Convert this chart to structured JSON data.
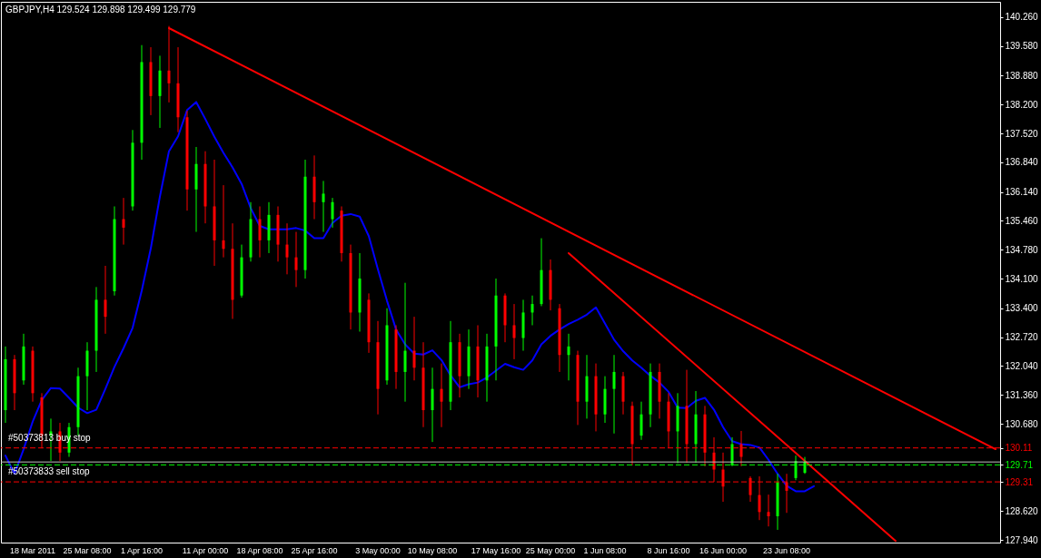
{
  "chart_data": {
    "type": "candlestick",
    "title": "GBPJPY,H4  129.524 129.898 129.499 129.779",
    "categories": [
      null,
      null,
      null,
      "18 Mar 2011",
      null,
      null,
      null,
      null,
      null,
      "25 Mar 08:00",
      null,
      null,
      null,
      null,
      null,
      "1 Apr 16:00",
      null,
      null,
      null,
      null,
      null,
      null,
      "11 Apr 00:00",
      null,
      null,
      null,
      null,
      null,
      "18 Apr 08:00",
      null,
      null,
      null,
      null,
      null,
      "25 Apr 16:00",
      null,
      null,
      null,
      null,
      null,
      null,
      "3 May 00:00",
      null,
      null,
      null,
      null,
      null,
      "10 May 08:00",
      null,
      null,
      null,
      null,
      null,
      null,
      "17 May 16:00",
      null,
      null,
      null,
      null,
      null,
      "25 May 00:00",
      null,
      null,
      null,
      null,
      null,
      "1 Jun 08:00",
      null,
      null,
      null,
      null,
      null,
      null,
      "8 Jun 16:00",
      null,
      null,
      null,
      null,
      null,
      "16 Jun 00:00",
      null,
      null,
      null,
      null,
      null,
      null,
      "23 Jun 08:00",
      null,
      null,
      null,
      null,
      null,
      null,
      null,
      null,
      null,
      null,
      null,
      null,
      null,
      null,
      null,
      null,
      null,
      null,
      null,
      null,
      null,
      null,
      null
    ],
    "ohlc": [
      [
        131.0,
        132.5,
        130.7,
        132.2
      ],
      [
        132.2,
        132.3,
        131.0,
        131.4
      ],
      [
        131.7,
        132.8,
        131.6,
        132.5
      ],
      [
        132.4,
        132.5,
        131.2,
        131.4
      ],
      [
        131.3,
        131.4,
        130.1,
        130.4
      ],
      [
        130.4,
        130.8,
        129.8,
        130.5
      ],
      [
        130.5,
        130.7,
        129.8,
        130.0
      ],
      [
        130.0,
        130.7,
        129.9,
        130.6
      ],
      [
        130.6,
        132.0,
        130.4,
        131.8
      ],
      [
        131.8,
        132.6,
        131.0,
        132.4
      ],
      [
        132.4,
        133.9,
        131.9,
        133.6
      ],
      [
        133.6,
        134.4,
        132.8,
        133.2
      ],
      [
        133.8,
        135.8,
        133.7,
        135.5
      ],
      [
        135.5,
        136.0,
        134.9,
        135.3
      ],
      [
        135.8,
        137.6,
        135.7,
        137.3
      ],
      [
        137.3,
        139.6,
        136.9,
        139.2
      ],
      [
        139.2,
        139.55,
        137.95,
        138.4
      ],
      [
        138.4,
        139.35,
        137.65,
        139.0
      ],
      [
        139.0,
        140.05,
        138.25,
        138.7
      ],
      [
        138.7,
        139.55,
        137.55,
        137.9
      ],
      [
        137.9,
        138.05,
        135.7,
        136.2
      ],
      [
        136.2,
        137.2,
        135.2,
        136.8
      ],
      [
        136.8,
        137.1,
        135.4,
        135.8
      ],
      [
        135.8,
        136.9,
        134.4,
        135.0
      ],
      [
        135.0,
        136.3,
        134.6,
        134.8
      ],
      [
        134.8,
        135.4,
        133.15,
        133.6
      ],
      [
        133.7,
        134.9,
        133.65,
        134.6
      ],
      [
        134.6,
        135.9,
        134.5,
        135.5
      ],
      [
        135.5,
        135.8,
        134.6,
        135.0
      ],
      [
        135.0,
        135.9,
        134.7,
        135.6
      ],
      [
        135.6,
        135.8,
        134.5,
        134.9
      ],
      [
        134.9,
        135.4,
        134.2,
        134.6
      ],
      [
        134.6,
        135.2,
        133.9,
        134.3
      ],
      [
        134.3,
        136.9,
        134.1,
        136.5
      ],
      [
        136.5,
        137.0,
        135.5,
        135.9
      ],
      [
        135.9,
        136.4,
        135.2,
        136.1
      ],
      [
        135.5,
        136.0,
        135.3,
        135.9
      ],
      [
        135.7,
        135.8,
        134.5,
        134.7
      ],
      [
        134.7,
        134.9,
        132.9,
        133.3
      ],
      [
        133.3,
        134.7,
        132.85,
        134.1
      ],
      [
        133.6,
        133.75,
        132.35,
        132.6
      ],
      [
        132.6,
        133.1,
        130.9,
        131.5
      ],
      [
        131.7,
        133.4,
        131.6,
        133.0
      ],
      [
        132.9,
        133.0,
        131.5,
        131.9
      ],
      [
        131.9,
        134.0,
        131.2,
        132.4
      ],
      [
        132.4,
        133.2,
        131.7,
        132.0
      ],
      [
        132.0,
        132.6,
        130.6,
        131.0
      ],
      [
        131.0,
        132.0,
        130.25,
        131.5
      ],
      [
        131.5,
        132.1,
        130.6,
        131.2
      ],
      [
        131.2,
        133.1,
        131.0,
        132.6
      ],
      [
        132.6,
        132.8,
        131.3,
        131.8
      ],
      [
        131.8,
        132.9,
        131.5,
        132.5
      ],
      [
        132.5,
        133.0,
        131.3,
        131.7
      ],
      [
        131.7,
        132.8,
        131.2,
        132.5
      ],
      [
        132.5,
        134.1,
        131.7,
        133.7
      ],
      [
        133.7,
        133.75,
        132.6,
        133.0
      ],
      [
        133.0,
        133.5,
        132.2,
        132.7
      ],
      [
        132.7,
        133.6,
        132.4,
        133.3
      ],
      [
        133.3,
        133.7,
        133.0,
        133.5
      ],
      [
        133.5,
        135.05,
        133.45,
        134.3
      ],
      [
        134.3,
        134.55,
        133.35,
        133.6
      ],
      [
        133.4,
        133.5,
        131.9,
        132.3
      ],
      [
        132.3,
        132.8,
        131.7,
        132.5
      ],
      [
        132.3,
        132.4,
        130.65,
        131.2
      ],
      [
        131.2,
        132.3,
        130.8,
        131.8
      ],
      [
        131.8,
        132.1,
        130.5,
        130.9
      ],
      [
        130.9,
        131.8,
        130.7,
        131.5
      ],
      [
        131.5,
        132.3,
        130.45,
        131.9
      ],
      [
        131.8,
        131.9,
        130.9,
        131.2
      ],
      [
        131.1,
        131.2,
        129.7,
        130.2
      ],
      [
        130.4,
        131.2,
        130.3,
        130.9
      ],
      [
        130.9,
        132.1,
        130.6,
        131.9
      ],
      [
        131.9,
        132.1,
        130.8,
        131.2
      ],
      [
        131.2,
        131.4,
        130.1,
        130.5
      ],
      [
        130.5,
        131.4,
        129.75,
        131.1
      ],
      [
        131.1,
        131.95,
        129.76,
        130.2
      ],
      [
        130.2,
        131.45,
        129.76,
        130.9
      ],
      [
        130.9,
        131.1,
        129.68,
        130.0
      ],
      [
        130.0,
        130.36,
        129.31,
        129.6
      ],
      [
        129.6,
        130.0,
        128.84,
        129.2
      ],
      [
        129.7,
        130.36,
        129.68,
        130.2
      ],
      [
        130.2,
        130.51,
        129.68,
        129.9
      ],
      [
        129.4,
        129.44,
        128.84,
        129.0
      ],
      [
        129.0,
        129.44,
        128.41,
        128.6
      ],
      [
        128.6,
        129.01,
        128.26,
        128.5
      ],
      [
        128.5,
        129.5,
        128.18,
        129.3
      ],
      [
        129.3,
        129.5,
        128.58,
        129.1
      ],
      [
        129.4,
        129.93,
        129.35,
        129.8
      ],
      [
        129.524,
        129.898,
        129.499,
        129.779
      ],
      null,
      null,
      null,
      null,
      null,
      null,
      null,
      null,
      null,
      null,
      null,
      null,
      null,
      null,
      null,
      null,
      null,
      null,
      null,
      null,
      null
    ],
    "series": [
      {
        "type": "line",
        "color": "#0000ff",
        "values": [
          129.93,
          129.5,
          130.08,
          130.73,
          131.24,
          131.52,
          131.51,
          131.29,
          131.06,
          130.93,
          131.01,
          131.5,
          132.02,
          132.46,
          132.94,
          133.81,
          134.81,
          136.03,
          137.1,
          137.45,
          138.07,
          138.26,
          137.86,
          137.44,
          137.06,
          136.72,
          136.33,
          135.76,
          135.34,
          135.26,
          135.26,
          135.26,
          135.29,
          135.23,
          135.05,
          135.05,
          135.41,
          135.58,
          135.62,
          135.56,
          135.1,
          134.32,
          133.58,
          132.9,
          132.55,
          132.33,
          132.31,
          132.41,
          132.18,
          131.82,
          131.54,
          131.61,
          131.65,
          131.77,
          131.93,
          132.09,
          132.01,
          131.95,
          132.17,
          132.55,
          132.75,
          132.9,
          133.03,
          133.13,
          133.25,
          133.42,
          133.04,
          132.66,
          132.39,
          132.17,
          132.0,
          131.81,
          131.65,
          131.43,
          131.06,
          131.05,
          131.22,
          131.29,
          131.01,
          130.6,
          130.27,
          130.2,
          130.18,
          130.12,
          129.83,
          129.5,
          129.22,
          129.09,
          129.09,
          129.21,
          null,
          null,
          null,
          null,
          null,
          null,
          null,
          null,
          null,
          null,
          null,
          null,
          null,
          null,
          null,
          null,
          null,
          null,
          null,
          null
        ]
      },
      {
        "type": "line",
        "color": "#ff0000",
        "values": [
          null,
          null,
          null,
          null,
          null,
          null,
          null,
          null,
          null,
          null,
          null,
          null,
          null,
          null,
          null,
          null,
          null,
          null,
          140.0,
          null,
          null,
          null,
          null,
          null,
          null,
          null,
          null,
          null,
          null,
          null,
          null,
          null,
          null,
          null,
          null,
          null,
          null,
          null,
          null,
          null,
          null,
          null,
          null,
          null,
          null,
          null,
          null,
          null,
          null,
          null,
          null,
          null,
          null,
          null,
          null,
          null,
          null,
          null,
          null,
          null,
          null,
          null,
          null,
          null,
          null,
          null,
          null,
          null,
          null,
          null,
          null,
          null,
          null,
          null,
          null,
          null,
          null,
          null,
          null,
          null,
          null,
          null,
          null,
          null,
          null,
          null,
          null,
          null,
          null,
          null,
          null,
          null,
          null,
          null,
          null,
          null,
          null,
          null,
          null,
          null,
          null,
          null,
          null,
          null,
          null,
          null,
          null,
          null,
          null,
          130.08
        ]
      },
      {
        "type": "line",
        "color": "#ff0000",
        "values": [
          null,
          null,
          null,
          null,
          null,
          null,
          null,
          null,
          null,
          null,
          null,
          null,
          null,
          null,
          null,
          null,
          null,
          null,
          null,
          null,
          null,
          null,
          null,
          null,
          null,
          null,
          null,
          null,
          null,
          null,
          null,
          null,
          null,
          null,
          null,
          null,
          null,
          null,
          null,
          null,
          null,
          null,
          null,
          null,
          null,
          null,
          null,
          null,
          null,
          null,
          null,
          null,
          null,
          null,
          null,
          null,
          null,
          null,
          null,
          null,
          null,
          null,
          134.7,
          null,
          null,
          null,
          null,
          null,
          null,
          null,
          null,
          null,
          null,
          null,
          null,
          null,
          null,
          null,
          null,
          null,
          null,
          null,
          null,
          null,
          null,
          null,
          null,
          null,
          null,
          null,
          null,
          null,
          null,
          null,
          null,
          null,
          null,
          null,
          127.92,
          null,
          null,
          null,
          null,
          null,
          null,
          null,
          null,
          null,
          null,
          null
        ]
      }
    ],
    "ylim": [
      127.88,
      140.62
    ],
    "yticks": [
      {
        "value": 127.94,
        "label": "127.940"
      },
      {
        "value": 128.62,
        "label": "128.620"
      },
      {
        "value": 129.31,
        "label": "129.31"
      },
      {
        "value": 129.71,
        "label": "129.71"
      },
      {
        "value": 130.11,
        "label": "130.11"
      },
      {
        "value": 130.68,
        "label": "130.680"
      },
      {
        "value": 131.36,
        "label": "131.360"
      },
      {
        "value": 132.04,
        "label": "132.040"
      },
      {
        "value": 132.72,
        "label": "132.720"
      },
      {
        "value": 133.4,
        "label": "133.400"
      },
      {
        "value": 134.1,
        "label": "134.100"
      },
      {
        "value": 134.78,
        "label": "134.780"
      },
      {
        "value": 135.46,
        "label": "135.460"
      },
      {
        "value": 136.14,
        "label": "136.140"
      },
      {
        "value": 136.84,
        "label": "136.840"
      },
      {
        "value": 137.52,
        "label": "137.520"
      },
      {
        "value": 138.2,
        "label": "138.200"
      },
      {
        "value": 138.88,
        "label": "138.880"
      },
      {
        "value": 139.58,
        "label": "139.580"
      },
      {
        "value": 140.26,
        "label": "140.260"
      }
    ],
    "ref_lines": [
      {
        "axis": "y",
        "value": 130.11,
        "label": "#50373813 buy stop",
        "color": "#ff0000",
        "line_style": "dashed"
      },
      {
        "axis": "y",
        "value": 129.779,
        "color": "#c0c0c0",
        "line_style": "solid"
      },
      {
        "axis": "y",
        "value": 129.71,
        "color": "#00ff00",
        "line_style": "dashed"
      },
      {
        "axis": "y",
        "value": 129.31,
        "label": "#50373833 sell stop",
        "color": "#ff0000",
        "line_style": "dashed"
      }
    ]
  }
}
